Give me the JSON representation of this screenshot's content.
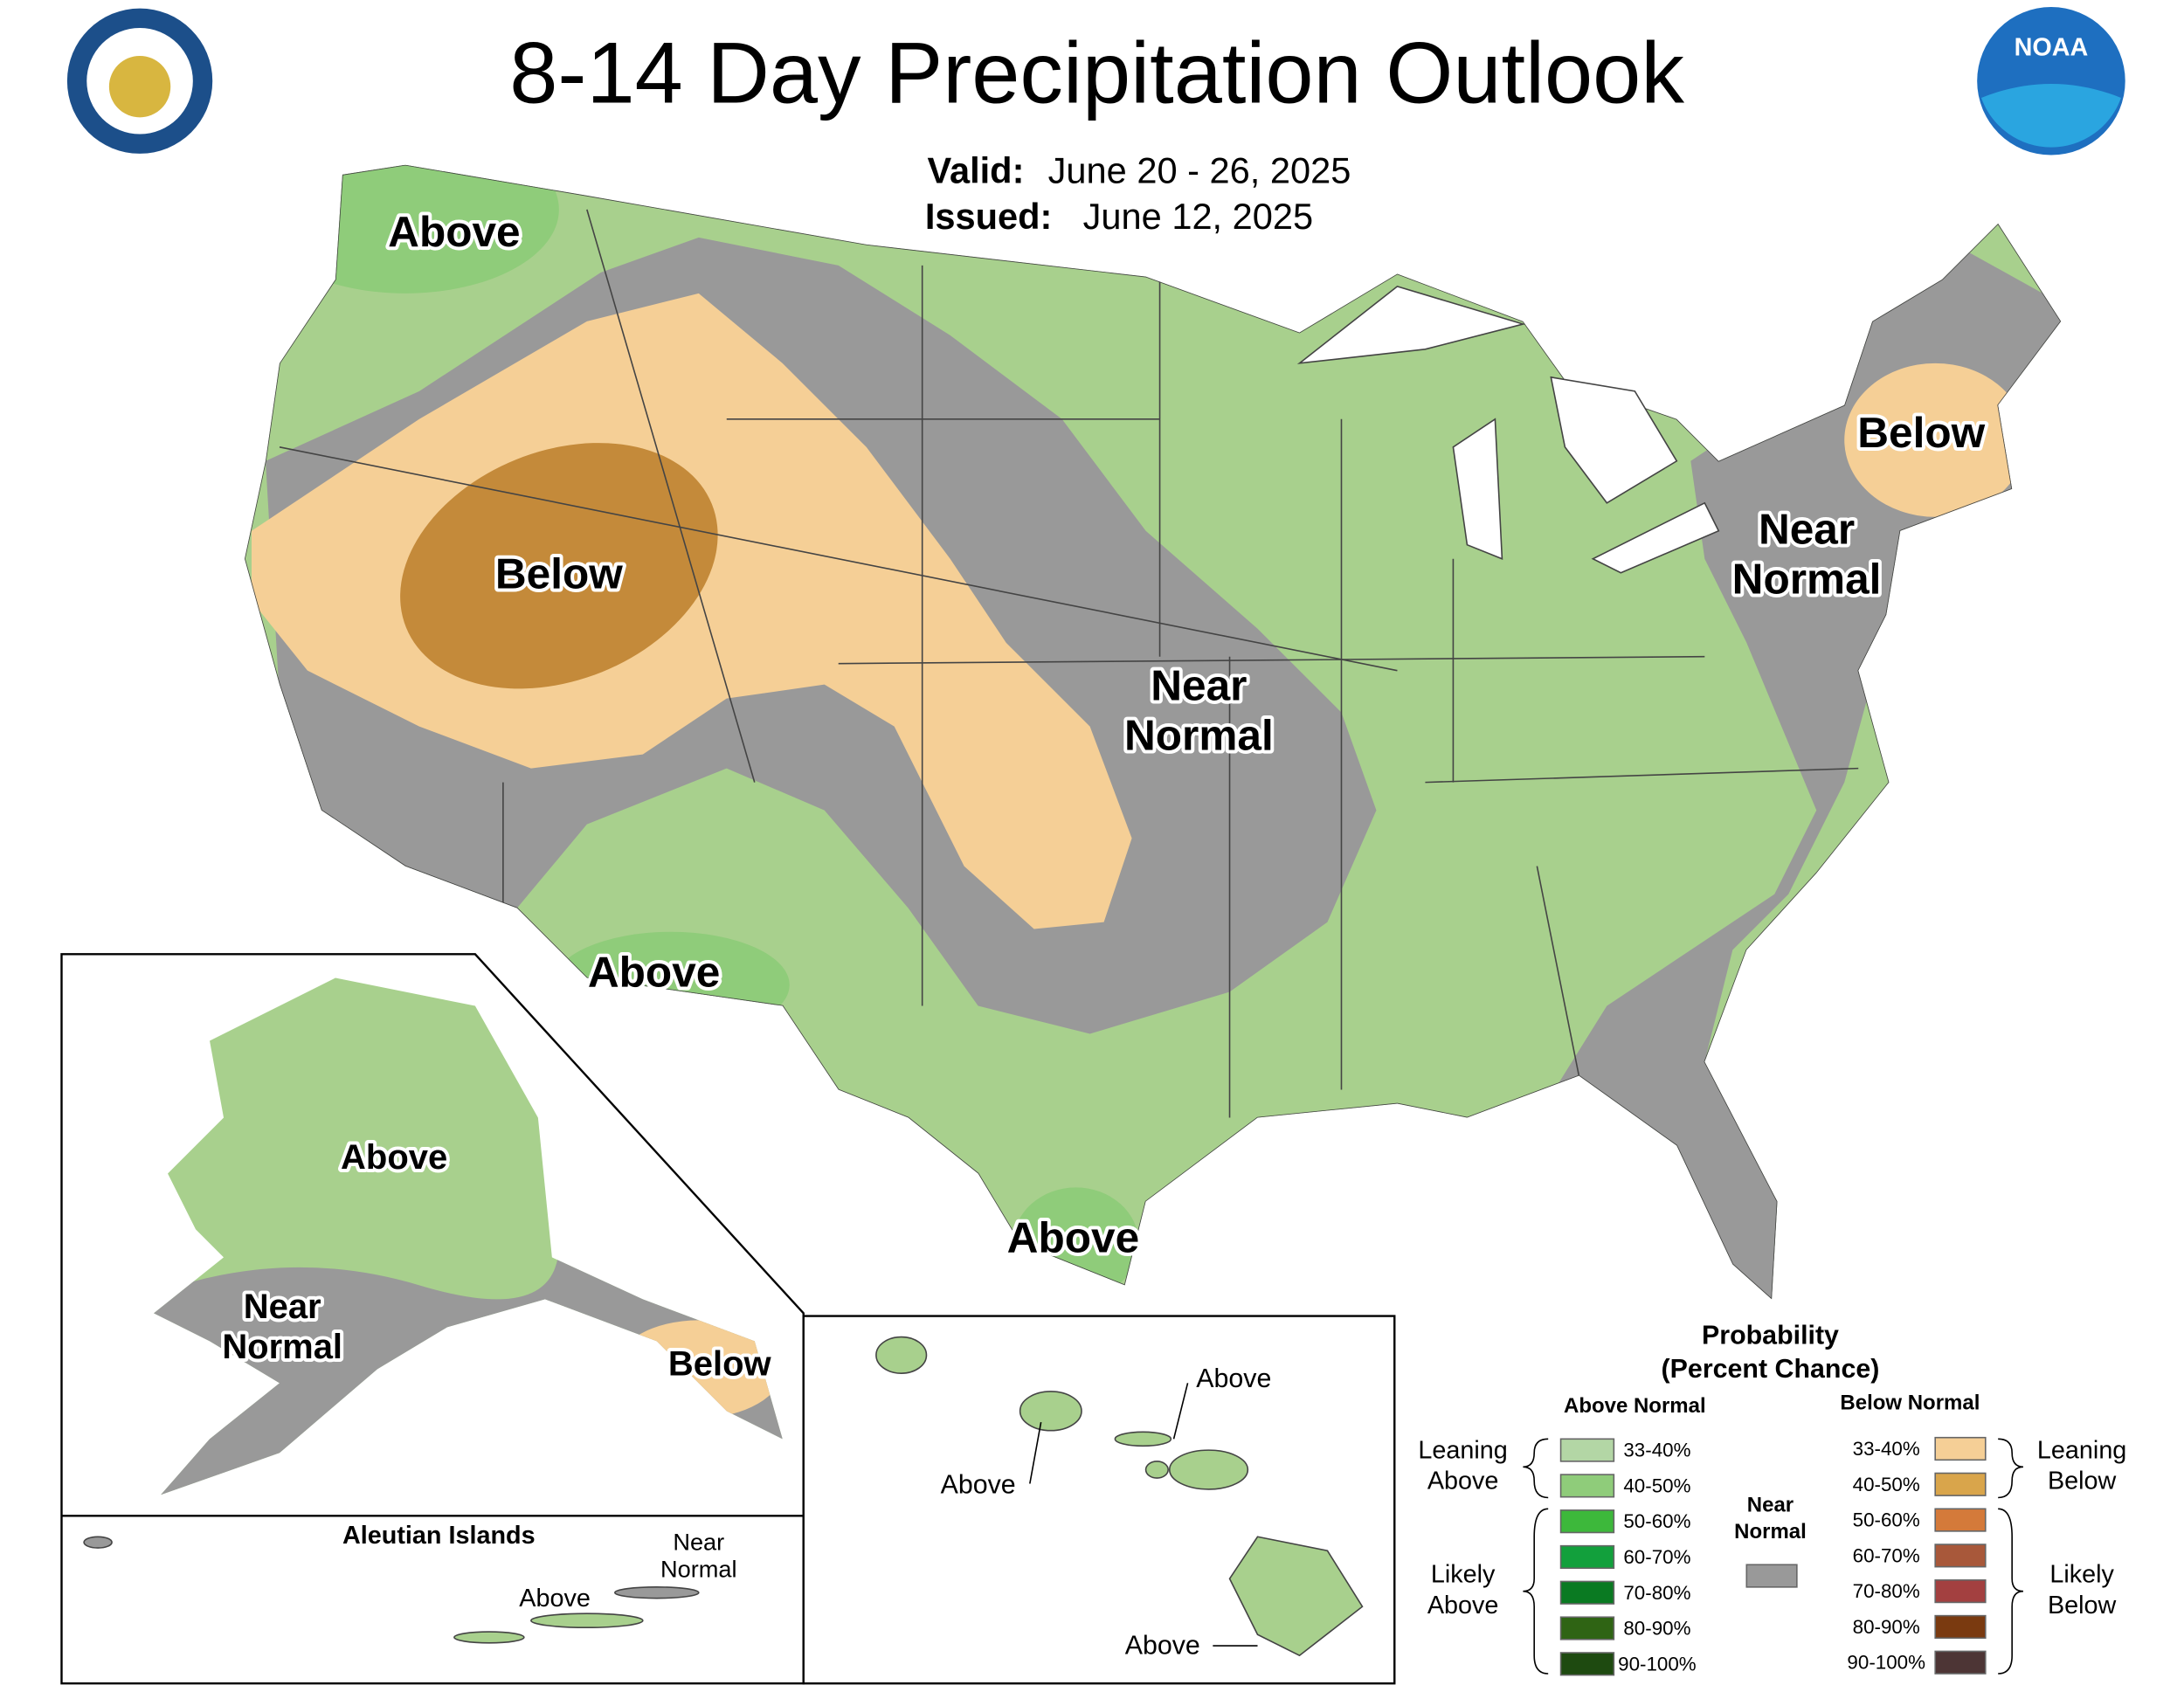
{
  "header": {
    "title": "8-14 Day Precipitation Outlook",
    "valid_label": "Valid:",
    "valid": "June 20 - 26, 2025",
    "issued_label": "Issued:",
    "issued": "June 12, 2025",
    "logo": "NOAA"
  },
  "map_labels": [
    {
      "lines": [
        "Above"
      ]
    },
    {
      "lines": [
        "Below"
      ]
    },
    {
      "lines": [
        "Near",
        "Normal"
      ]
    },
    {
      "lines": [
        "Above"
      ]
    },
    {
      "lines": [
        "Above"
      ]
    },
    {
      "lines": [
        "Below"
      ]
    },
    {
      "lines": [
        "Near",
        "Normal"
      ]
    },
    {
      "lines": [
        "Above"
      ]
    },
    {
      "lines": [
        "Near",
        "Normal"
      ]
    },
    {
      "lines": [
        "Below"
      ]
    },
    {
      "lines": [
        "Above"
      ]
    },
    {
      "lines": [
        "Above"
      ]
    },
    {
      "lines": [
        "Above"
      ]
    },
    {
      "lines": [
        "Above"
      ]
    },
    {
      "lines": [
        "Near",
        "Normal"
      ]
    }
  ],
  "insets": {
    "aleutian_title": "Aleutian Islands"
  },
  "legend": {
    "title": "Probability",
    "subtitle": "(Percent Chance)",
    "above_heading": "Above Normal",
    "below_heading": "Below Normal",
    "near": [
      "Near",
      "Normal"
    ],
    "near_color": "#999999",
    "above": [
      {
        "label": "33-40%",
        "color": "#b3d6a5"
      },
      {
        "label": "40-50%",
        "color": "#8fcc7a"
      },
      {
        "label": "50-60%",
        "color": "#3db83b"
      },
      {
        "label": "60-70%",
        "color": "#12a03c"
      },
      {
        "label": "70-80%",
        "color": "#0a7a22"
      },
      {
        "label": "80-90%",
        "color": "#2f6414"
      },
      {
        "label": "90-100%",
        "color": "#1e4a10"
      }
    ],
    "below": [
      {
        "label": "33-40%",
        "color": "#f5cf96"
      },
      {
        "label": "40-50%",
        "color": "#d9a54b"
      },
      {
        "label": "50-60%",
        "color": "#d47a3a"
      },
      {
        "label": "60-70%",
        "color": "#a8583a"
      },
      {
        "label": "70-80%",
        "color": "#a34040"
      },
      {
        "label": "80-90%",
        "color": "#7a3a10"
      },
      {
        "label": "90-100%",
        "color": "#4d3535"
      }
    ],
    "groups": [
      {
        "lines": [
          "Leaning",
          "Above"
        ]
      },
      {
        "lines": [
          "Likely",
          "Above"
        ]
      },
      {
        "lines": [
          "Leaning",
          "Below"
        ]
      },
      {
        "lines": [
          "Likely",
          "Below"
        ]
      }
    ]
  }
}
